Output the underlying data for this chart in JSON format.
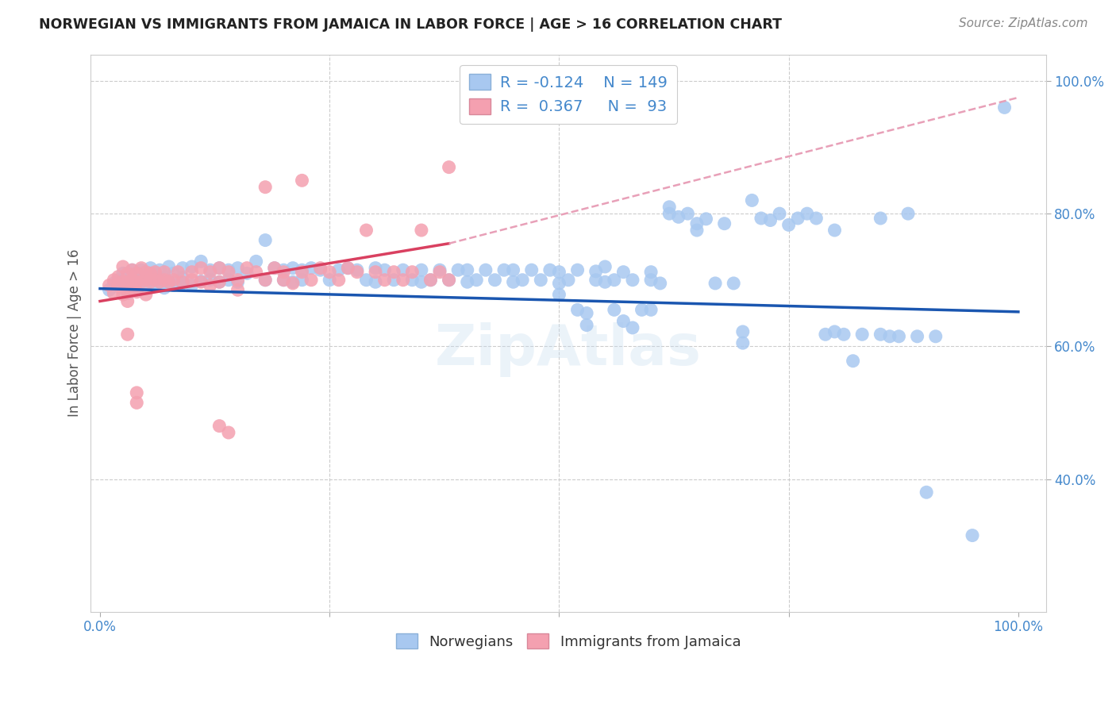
{
  "title": "NORWEGIAN VS IMMIGRANTS FROM JAMAICA IN LABOR FORCE | AGE > 16 CORRELATION CHART",
  "source": "Source: ZipAtlas.com",
  "ylabel": "In Labor Force | Age > 16",
  "r_norwegian": -0.124,
  "n_norwegian": 149,
  "r_jamaica": 0.367,
  "n_jamaica": 93,
  "norwegian_color": "#a8c8f0",
  "jamaica_color": "#f4a0b0",
  "norwegian_line_color": "#1a56b0",
  "jamaica_line_color": "#d94060",
  "jamaica_dash_color": "#e8a0b8",
  "xmin": 0.0,
  "xmax": 1.0,
  "ymin": 0.2,
  "ymax": 1.04,
  "ytick_vals": [
    0.4,
    0.6,
    0.8,
    1.0
  ],
  "ytick_labels": [
    "40.0%",
    "60.0%",
    "80.0%",
    "100.0%"
  ],
  "xtick_vals": [
    0.0,
    0.25,
    0.5,
    0.75,
    1.0
  ],
  "xtick_labels": [
    "0.0%",
    "",
    "",
    "",
    "100.0%"
  ],
  "norw_line": [
    0.0,
    0.687,
    1.0,
    0.652
  ],
  "jama_line_solid": [
    0.0,
    0.668,
    0.38,
    0.755
  ],
  "jama_line_dash": [
    0.38,
    0.755,
    1.0,
    0.975
  ],
  "norwegian_scatter": [
    [
      0.01,
      0.685
    ],
    [
      0.015,
      0.695
    ],
    [
      0.02,
      0.7
    ],
    [
      0.02,
      0.69
    ],
    [
      0.025,
      0.71
    ],
    [
      0.025,
      0.695
    ],
    [
      0.03,
      0.705
    ],
    [
      0.03,
      0.69
    ],
    [
      0.03,
      0.68
    ],
    [
      0.035,
      0.715
    ],
    [
      0.035,
      0.7
    ],
    [
      0.035,
      0.688
    ],
    [
      0.04,
      0.71
    ],
    [
      0.04,
      0.697
    ],
    [
      0.04,
      0.685
    ],
    [
      0.045,
      0.702
    ],
    [
      0.045,
      0.715
    ],
    [
      0.05,
      0.7
    ],
    [
      0.05,
      0.695
    ],
    [
      0.055,
      0.718
    ],
    [
      0.055,
      0.702
    ],
    [
      0.06,
      0.71
    ],
    [
      0.06,
      0.692
    ],
    [
      0.065,
      0.715
    ],
    [
      0.065,
      0.698
    ],
    [
      0.07,
      0.703
    ],
    [
      0.07,
      0.688
    ],
    [
      0.075,
      0.72
    ],
    [
      0.075,
      0.695
    ],
    [
      0.08,
      0.71
    ],
    [
      0.08,
      0.692
    ],
    [
      0.09,
      0.718
    ],
    [
      0.09,
      0.703
    ],
    [
      0.09,
      0.695
    ],
    [
      0.1,
      0.692
    ],
    [
      0.1,
      0.72
    ],
    [
      0.11,
      0.728
    ],
    [
      0.11,
      0.698
    ],
    [
      0.12,
      0.715
    ],
    [
      0.12,
      0.7
    ],
    [
      0.13,
      0.718
    ],
    [
      0.13,
      0.697
    ],
    [
      0.14,
      0.715
    ],
    [
      0.14,
      0.7
    ],
    [
      0.15,
      0.718
    ],
    [
      0.15,
      0.697
    ],
    [
      0.16,
      0.71
    ],
    [
      0.17,
      0.728
    ],
    [
      0.18,
      0.76
    ],
    [
      0.18,
      0.7
    ],
    [
      0.19,
      0.718
    ],
    [
      0.2,
      0.715
    ],
    [
      0.2,
      0.7
    ],
    [
      0.21,
      0.718
    ],
    [
      0.21,
      0.697
    ],
    [
      0.22,
      0.715
    ],
    [
      0.22,
      0.7
    ],
    [
      0.23,
      0.718
    ],
    [
      0.24,
      0.715
    ],
    [
      0.25,
      0.7
    ],
    [
      0.26,
      0.715
    ],
    [
      0.27,
      0.718
    ],
    [
      0.28,
      0.715
    ],
    [
      0.29,
      0.7
    ],
    [
      0.3,
      0.718
    ],
    [
      0.3,
      0.697
    ],
    [
      0.31,
      0.715
    ],
    [
      0.32,
      0.7
    ],
    [
      0.33,
      0.715
    ],
    [
      0.34,
      0.7
    ],
    [
      0.35,
      0.697
    ],
    [
      0.35,
      0.715
    ],
    [
      0.36,
      0.7
    ],
    [
      0.37,
      0.715
    ],
    [
      0.38,
      0.7
    ],
    [
      0.39,
      0.715
    ],
    [
      0.4,
      0.697
    ],
    [
      0.4,
      0.715
    ],
    [
      0.41,
      0.7
    ],
    [
      0.42,
      0.715
    ],
    [
      0.43,
      0.7
    ],
    [
      0.44,
      0.715
    ],
    [
      0.45,
      0.697
    ],
    [
      0.45,
      0.715
    ],
    [
      0.46,
      0.7
    ],
    [
      0.47,
      0.715
    ],
    [
      0.48,
      0.7
    ],
    [
      0.49,
      0.715
    ],
    [
      0.5,
      0.695
    ],
    [
      0.5,
      0.712
    ],
    [
      0.5,
      0.678
    ],
    [
      0.51,
      0.7
    ],
    [
      0.52,
      0.715
    ],
    [
      0.52,
      0.655
    ],
    [
      0.53,
      0.65
    ],
    [
      0.53,
      0.632
    ],
    [
      0.54,
      0.713
    ],
    [
      0.54,
      0.7
    ],
    [
      0.55,
      0.697
    ],
    [
      0.55,
      0.72
    ],
    [
      0.56,
      0.7
    ],
    [
      0.56,
      0.655
    ],
    [
      0.57,
      0.712
    ],
    [
      0.57,
      0.638
    ],
    [
      0.58,
      0.7
    ],
    [
      0.58,
      0.628
    ],
    [
      0.59,
      0.655
    ],
    [
      0.6,
      0.712
    ],
    [
      0.6,
      0.7
    ],
    [
      0.6,
      0.655
    ],
    [
      0.61,
      0.695
    ],
    [
      0.62,
      0.81
    ],
    [
      0.62,
      0.8
    ],
    [
      0.63,
      0.795
    ],
    [
      0.64,
      0.8
    ],
    [
      0.65,
      0.785
    ],
    [
      0.65,
      0.775
    ],
    [
      0.66,
      0.792
    ],
    [
      0.67,
      0.695
    ],
    [
      0.68,
      0.785
    ],
    [
      0.69,
      0.695
    ],
    [
      0.7,
      0.622
    ],
    [
      0.7,
      0.605
    ],
    [
      0.71,
      0.82
    ],
    [
      0.72,
      0.793
    ],
    [
      0.73,
      0.79
    ],
    [
      0.74,
      0.8
    ],
    [
      0.75,
      0.783
    ],
    [
      0.76,
      0.793
    ],
    [
      0.77,
      0.8
    ],
    [
      0.78,
      0.793
    ],
    [
      0.79,
      0.618
    ],
    [
      0.8,
      0.775
    ],
    [
      0.8,
      0.622
    ],
    [
      0.81,
      0.618
    ],
    [
      0.82,
      0.578
    ],
    [
      0.83,
      0.618
    ],
    [
      0.85,
      0.793
    ],
    [
      0.85,
      0.618
    ],
    [
      0.86,
      0.615
    ],
    [
      0.87,
      0.615
    ],
    [
      0.88,
      0.8
    ],
    [
      0.89,
      0.615
    ],
    [
      0.9,
      0.38
    ],
    [
      0.91,
      0.615
    ],
    [
      0.95,
      0.315
    ],
    [
      0.985,
      0.96
    ]
  ],
  "jamaica_scatter": [
    [
      0.01,
      0.692
    ],
    [
      0.015,
      0.7
    ],
    [
      0.015,
      0.68
    ],
    [
      0.02,
      0.705
    ],
    [
      0.02,
      0.692
    ],
    [
      0.025,
      0.72
    ],
    [
      0.025,
      0.697
    ],
    [
      0.025,
      0.678
    ],
    [
      0.03,
      0.71
    ],
    [
      0.03,
      0.697
    ],
    [
      0.03,
      0.682
    ],
    [
      0.03,
      0.668
    ],
    [
      0.03,
      0.618
    ],
    [
      0.035,
      0.715
    ],
    [
      0.035,
      0.7
    ],
    [
      0.035,
      0.685
    ],
    [
      0.04,
      0.71
    ],
    [
      0.04,
      0.697
    ],
    [
      0.04,
      0.682
    ],
    [
      0.04,
      0.53
    ],
    [
      0.04,
      0.515
    ],
    [
      0.045,
      0.718
    ],
    [
      0.045,
      0.697
    ],
    [
      0.05,
      0.712
    ],
    [
      0.05,
      0.7
    ],
    [
      0.05,
      0.678
    ],
    [
      0.055,
      0.71
    ],
    [
      0.055,
      0.697
    ],
    [
      0.06,
      0.712
    ],
    [
      0.06,
      0.7
    ],
    [
      0.065,
      0.697
    ],
    [
      0.07,
      0.712
    ],
    [
      0.07,
      0.7
    ],
    [
      0.075,
      0.697
    ],
    [
      0.08,
      0.7
    ],
    [
      0.085,
      0.712
    ],
    [
      0.09,
      0.697
    ],
    [
      0.1,
      0.712
    ],
    [
      0.1,
      0.7
    ],
    [
      0.11,
      0.718
    ],
    [
      0.11,
      0.697
    ],
    [
      0.12,
      0.712
    ],
    [
      0.12,
      0.692
    ],
    [
      0.13,
      0.718
    ],
    [
      0.13,
      0.697
    ],
    [
      0.14,
      0.712
    ],
    [
      0.15,
      0.7
    ],
    [
      0.15,
      0.685
    ],
    [
      0.16,
      0.718
    ],
    [
      0.17,
      0.712
    ],
    [
      0.18,
      0.84
    ],
    [
      0.18,
      0.7
    ],
    [
      0.19,
      0.718
    ],
    [
      0.2,
      0.712
    ],
    [
      0.2,
      0.7
    ],
    [
      0.21,
      0.695
    ],
    [
      0.22,
      0.712
    ],
    [
      0.23,
      0.7
    ],
    [
      0.24,
      0.718
    ],
    [
      0.25,
      0.712
    ],
    [
      0.26,
      0.7
    ],
    [
      0.27,
      0.718
    ],
    [
      0.28,
      0.712
    ],
    [
      0.29,
      0.775
    ],
    [
      0.3,
      0.712
    ],
    [
      0.31,
      0.7
    ],
    [
      0.32,
      0.712
    ],
    [
      0.33,
      0.7
    ],
    [
      0.34,
      0.712
    ],
    [
      0.35,
      0.775
    ],
    [
      0.36,
      0.7
    ],
    [
      0.37,
      0.712
    ],
    [
      0.38,
      0.7
    ],
    [
      0.13,
      0.48
    ],
    [
      0.14,
      0.47
    ],
    [
      0.38,
      0.87
    ],
    [
      0.22,
      0.85
    ]
  ]
}
